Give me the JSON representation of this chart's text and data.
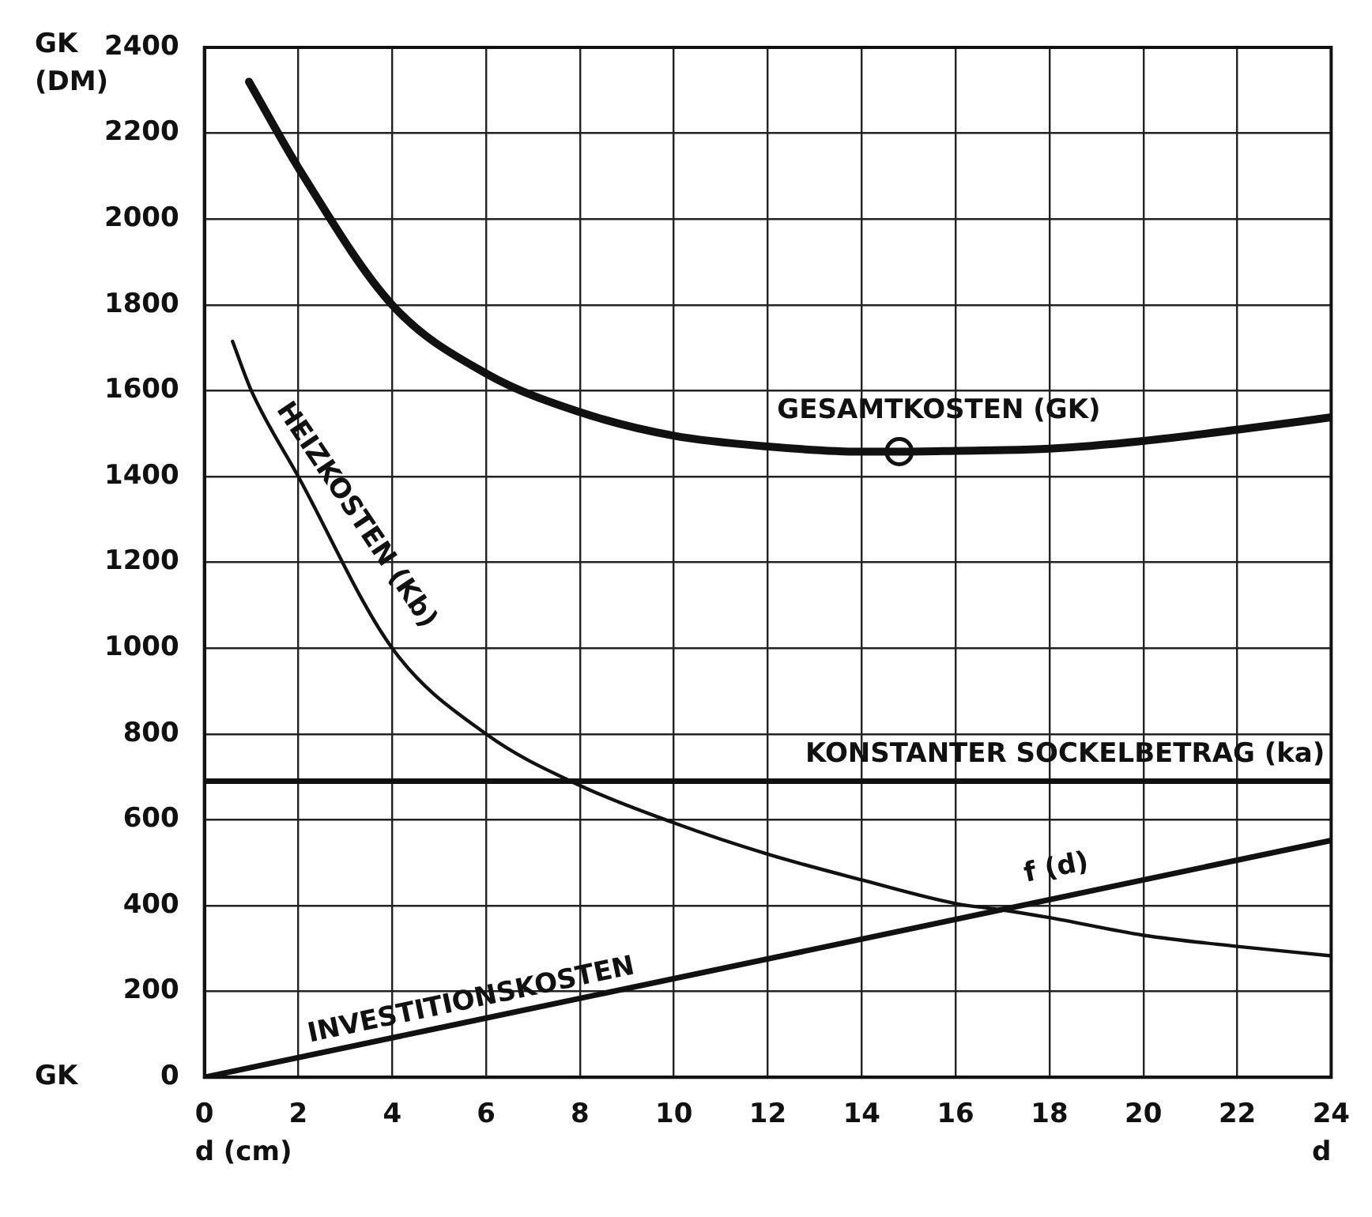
{
  "chart_data": {
    "type": "line",
    "ylabel": "GK (DM)",
    "xlabel": "d (cm)",
    "xlim": [
      0,
      24
    ],
    "xticks": [
      0,
      2,
      4,
      6,
      8,
      10,
      12,
      14,
      16,
      18,
      20,
      22,
      24
    ],
    "ylim": [
      0,
      2400
    ],
    "yticks": [
      0,
      200,
      400,
      600,
      800,
      1000,
      1200,
      1400,
      1600,
      1800,
      2000,
      2200,
      2400
    ],
    "grid": true,
    "legend": false,
    "marker": "none",
    "line_style": "solid",
    "series": [
      {
        "name": "GESAMTKOSTEN (GK)",
        "color": "#111111",
        "x": [
          0.95,
          2,
          4,
          6,
          8,
          10,
          12,
          14,
          14.8,
          16,
          18,
          20,
          22,
          24
        ],
        "values": [
          2320,
          2120,
          1800,
          1640,
          1550,
          1495,
          1470,
          1458,
          1458,
          1460,
          1465,
          1483,
          1509,
          1538
        ]
      },
      {
        "name": "HEIZKOSTEN (Kb)",
        "color": "#111111",
        "x": [
          0.6,
          1,
          2,
          4,
          6,
          8,
          10,
          12,
          14,
          16,
          17,
          18,
          20,
          22,
          24
        ],
        "values": [
          1715,
          1600,
          1400,
          1000,
          800,
          680,
          593,
          520,
          460,
          405,
          390,
          372,
          331,
          305,
          283
        ]
      },
      {
        "name": "INVESTITIONSKOSTEN",
        "color": "#111111",
        "x": [
          0,
          24
        ],
        "values": [
          0,
          552
        ]
      },
      {
        "type": "scatter",
        "color": "#111111",
        "marker": "circle",
        "x": [
          14.8
        ],
        "values": [
          1458
        ]
      }
    ],
    "ref_lines": [
      {
        "axis": "y",
        "value": 690,
        "label": "KONSTANTER SOCKELBETRAG (ka)",
        "color": "#111111"
      }
    ],
    "annotations": [
      {
        "text": "f (d)",
        "x": 17,
        "y": 390
      },
      "GK",
      "d"
    ]
  }
}
